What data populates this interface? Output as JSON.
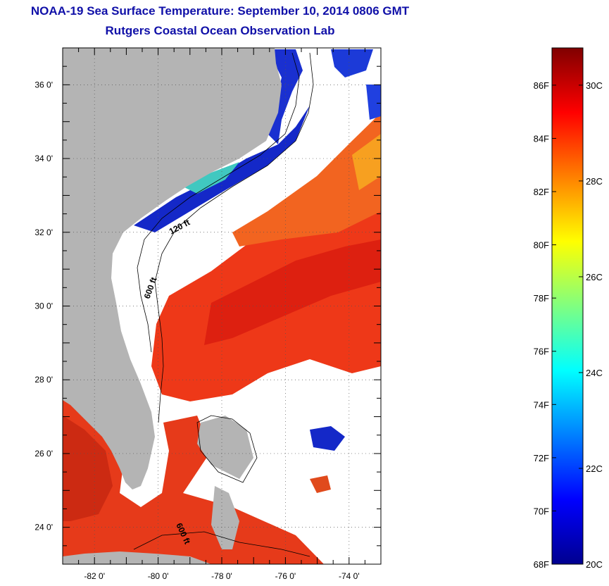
{
  "header": {
    "title": "NOAA-19 Sea Surface Temperature:  September 10, 2014 0806 GMT",
    "subtitle": "Rutgers Coastal Ocean Observation Lab"
  },
  "map": {
    "lat_range": [
      23,
      37
    ],
    "lon_range": [
      -83,
      -73
    ],
    "lat_ticks": [
      {
        "value": 24,
        "label": "24 0'"
      },
      {
        "value": 26,
        "label": "26 0'"
      },
      {
        "value": 28,
        "label": "28 0'"
      },
      {
        "value": 30,
        "label": "30 0'"
      },
      {
        "value": 32,
        "label": "32 0'"
      },
      {
        "value": 34,
        "label": "34 0'"
      },
      {
        "value": 36,
        "label": "36 0'"
      }
    ],
    "lon_ticks": [
      {
        "value": -82,
        "label": "-82 0'"
      },
      {
        "value": -80,
        "label": "-80 0'"
      },
      {
        "value": -78,
        "label": "-78 0'"
      },
      {
        "value": -76,
        "label": "-76 0'"
      },
      {
        "value": -74,
        "label": "-74 0'"
      }
    ],
    "contour_labels": [
      {
        "text": "120 ft"
      },
      {
        "text": "600 ft"
      },
      {
        "text": "600 ft"
      }
    ],
    "colors": {
      "land": "#b4b4b4",
      "cloud": "#ffffff",
      "grid": "#555555"
    }
  },
  "colorbar": {
    "min_f": 68,
    "max_f": 87.4,
    "f_ticks": [
      {
        "value": 68,
        "label": "68F"
      },
      {
        "value": 70,
        "label": "70F"
      },
      {
        "value": 72,
        "label": "72F"
      },
      {
        "value": 74,
        "label": "74F"
      },
      {
        "value": 76,
        "label": "76F"
      },
      {
        "value": 78,
        "label": "78F"
      },
      {
        "value": 80,
        "label": "80F"
      },
      {
        "value": 82,
        "label": "82F"
      },
      {
        "value": 84,
        "label": "84F"
      },
      {
        "value": 86,
        "label": "86F"
      }
    ],
    "c_ticks": [
      {
        "value": 20,
        "label": "20C"
      },
      {
        "value": 22,
        "label": "22C"
      },
      {
        "value": 24,
        "label": "24C"
      },
      {
        "value": 26,
        "label": "26C"
      },
      {
        "value": 28,
        "label": "28C"
      },
      {
        "value": 30,
        "label": "30C"
      }
    ],
    "colormap": [
      "#00008f",
      "#0000ff",
      "#0080ff",
      "#00ffff",
      "#80ff80",
      "#ffff00",
      "#ff8000",
      "#ff0000",
      "#800000"
    ]
  }
}
